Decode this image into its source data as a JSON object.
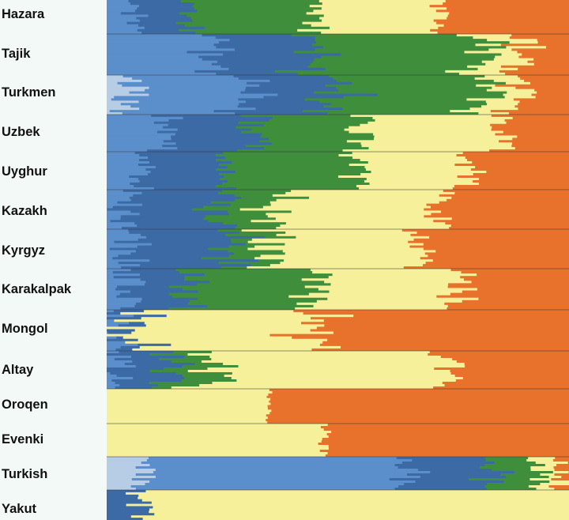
{
  "chart_data": {
    "type": "bar",
    "orientation": "horizontal-stacked",
    "title": "",
    "xlabel": "",
    "ylabel": "",
    "xlim": [
      0,
      1
    ],
    "colors": {
      "lightblue": "#b7cde6",
      "blue": "#5b8fcb",
      "darkblue": "#3c6aa5",
      "green": "#3e8e3c",
      "yellow": "#f7f09a",
      "orange": "#e8722b"
    },
    "categories": [
      "Hazara",
      "Tajik",
      "Turkmen",
      "Uzbek",
      "Uyghur",
      "Kazakh",
      "Kyrgyz",
      "Karakalpak",
      "Mongol",
      "Altay",
      "Oroqen",
      "Evenki",
      "Turkish",
      "Yakut"
    ],
    "series_order": [
      "lightblue",
      "blue",
      "darkblue",
      "green",
      "yellow",
      "orange"
    ],
    "populations": [
      {
        "name": "Hazara",
        "proportions": {
          "lightblue": 0.0,
          "blue": 0.06,
          "darkblue": 0.11,
          "green": 0.27,
          "yellow": 0.28,
          "orange": 0.28
        },
        "variation": 0.03
      },
      {
        "name": "Tajik",
        "proportions": {
          "lightblue": 0.0,
          "blue": 0.22,
          "darkblue": 0.21,
          "green": 0.38,
          "yellow": 0.09,
          "orange": 0.1
        },
        "variation": 0.05
      },
      {
        "name": "Turkmen",
        "proportions": {
          "lightblue": 0.05,
          "blue": 0.26,
          "darkblue": 0.18,
          "green": 0.32,
          "yellow": 0.08,
          "orange": 0.11
        },
        "variation": 0.05
      },
      {
        "name": "Uzbek",
        "proportions": {
          "lightblue": 0.0,
          "blue": 0.12,
          "darkblue": 0.19,
          "green": 0.23,
          "yellow": 0.31,
          "orange": 0.15
        },
        "variation": 0.04
      },
      {
        "name": "Uyghur",
        "proportions": {
          "lightblue": 0.0,
          "blue": 0.07,
          "darkblue": 0.18,
          "green": 0.29,
          "yellow": 0.24,
          "orange": 0.22
        },
        "variation": 0.04
      },
      {
        "name": "Kazakh",
        "proportions": {
          "lightblue": 0.0,
          "blue": 0.04,
          "darkblue": 0.21,
          "green": 0.12,
          "yellow": 0.35,
          "orange": 0.28
        },
        "variation": 0.04
      },
      {
        "name": "Kyrgyz",
        "proportions": {
          "lightblue": 0.0,
          "blue": 0.05,
          "darkblue": 0.22,
          "green": 0.08,
          "yellow": 0.33,
          "orange": 0.32
        },
        "variation": 0.05
      },
      {
        "name": "Karakalpak",
        "proportions": {
          "lightblue": 0.0,
          "blue": 0.05,
          "darkblue": 0.13,
          "green": 0.27,
          "yellow": 0.31,
          "orange": 0.24
        },
        "variation": 0.04
      },
      {
        "name": "Mongol",
        "proportions": {
          "lightblue": 0.0,
          "blue": 0.01,
          "darkblue": 0.02,
          "green": 0.0,
          "yellow": 0.4,
          "orange": 0.57
        },
        "variation": 0.07
      },
      {
        "name": "Altay",
        "proportions": {
          "lightblue": 0.0,
          "blue": 0.02,
          "darkblue": 0.11,
          "green": 0.09,
          "yellow": 0.5,
          "orange": 0.28
        },
        "variation": 0.05
      },
      {
        "name": "Oroqen",
        "proportions": {
          "lightblue": 0.0,
          "blue": 0.0,
          "darkblue": 0.0,
          "green": 0.0,
          "yellow": 0.35,
          "orange": 0.65
        },
        "variation": 0.01
      },
      {
        "name": "Evenki",
        "proportions": {
          "lightblue": 0.0,
          "blue": 0.0,
          "darkblue": 0.0,
          "green": 0.0,
          "yellow": 0.47,
          "orange": 0.53
        },
        "variation": 0.02
      },
      {
        "name": "Turkish",
        "proportions": {
          "lightblue": 0.08,
          "blue": 0.57,
          "darkblue": 0.18,
          "green": 0.11,
          "yellow": 0.04,
          "orange": 0.02
        },
        "variation": 0.03
      },
      {
        "name": "Yakut",
        "proportions": {
          "lightblue": 0.0,
          "blue": 0.0,
          "darkblue": 0.07,
          "green": 0.0,
          "yellow": 0.93,
          "orange": 0.0
        },
        "variation": 0.04
      }
    ]
  }
}
